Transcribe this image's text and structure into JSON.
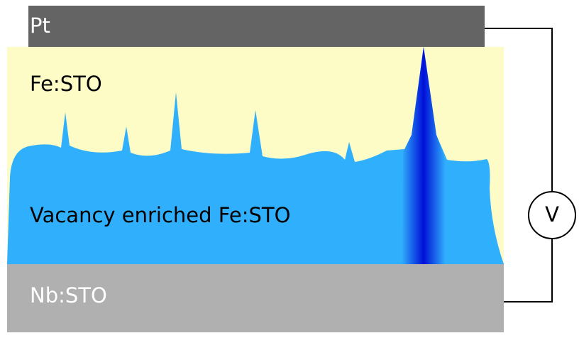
{
  "layers": {
    "top_electrode": "Pt",
    "film": "Fe:STO",
    "enriched_region": "Vacancy enriched Fe:STO",
    "substrate": "Nb:STO"
  },
  "meter": "V"
}
